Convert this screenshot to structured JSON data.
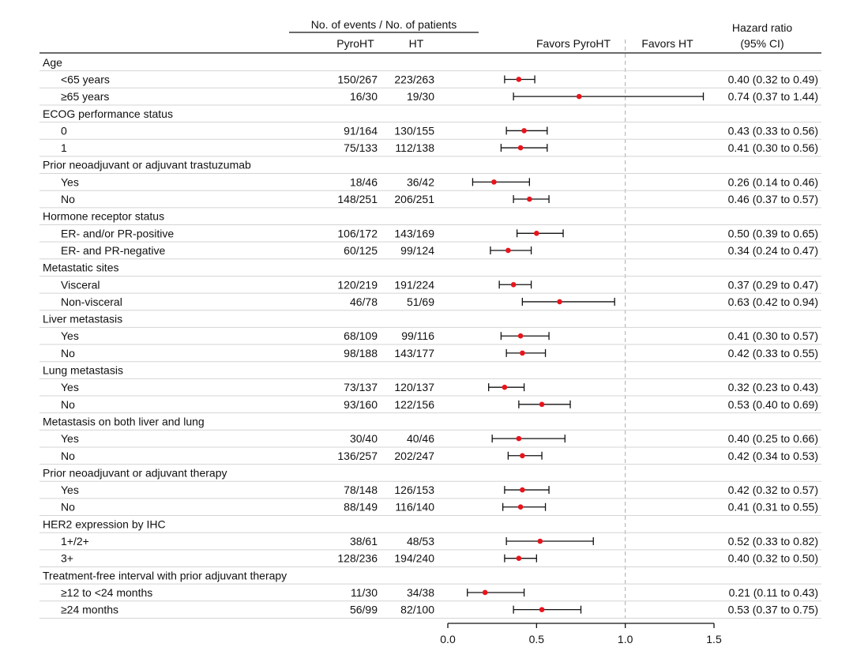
{
  "header": {
    "events_group": "No. of events / No. of patients",
    "col_pyroht": "PyroHT",
    "col_ht": "HT",
    "favors_left": "Favors PyroHT",
    "favors_right": "Favors HT",
    "hr_line1": "Hazard ratio",
    "hr_line2": "(95% CI)"
  },
  "chart_data": {
    "type": "forest",
    "xlim": [
      0,
      1.5
    ],
    "reference_line": 1.0,
    "ticks": [
      0.0,
      0.5,
      1.0,
      1.5
    ],
    "tick_labels": [
      "0.0",
      "0.5",
      "1.0",
      "1.5"
    ],
    "point_color": "#e8141c",
    "rows": [
      {
        "kind": "group",
        "label": "Age"
      },
      {
        "kind": "sub",
        "label": "<65 years",
        "pyroht": "150/267",
        "ht": "223/263",
        "hr": 0.4,
        "lo": 0.32,
        "hi": 0.49,
        "text": "0.40 (0.32 to 0.49)"
      },
      {
        "kind": "sub",
        "label": "≥65 years",
        "pyroht": "16/30",
        "ht": "19/30",
        "hr": 0.74,
        "lo": 0.37,
        "hi": 1.44,
        "text": "0.74 (0.37 to 1.44)"
      },
      {
        "kind": "group",
        "label": "ECOG performance status"
      },
      {
        "kind": "sub",
        "label": "0",
        "pyroht": "91/164",
        "ht": "130/155",
        "hr": 0.43,
        "lo": 0.33,
        "hi": 0.56,
        "text": "0.43 (0.33 to 0.56)"
      },
      {
        "kind": "sub",
        "label": "1",
        "pyroht": "75/133",
        "ht": "112/138",
        "hr": 0.41,
        "lo": 0.3,
        "hi": 0.56,
        "text": "0.41 (0.30 to 0.56)"
      },
      {
        "kind": "group",
        "label": "Prior neoadjuvant or adjuvant trastuzumab"
      },
      {
        "kind": "sub",
        "label": "Yes",
        "pyroht": "18/46",
        "ht": "36/42",
        "hr": 0.26,
        "lo": 0.14,
        "hi": 0.46,
        "text": "0.26 (0.14 to 0.46)"
      },
      {
        "kind": "sub",
        "label": "No",
        "pyroht": "148/251",
        "ht": "206/251",
        "hr": 0.46,
        "lo": 0.37,
        "hi": 0.57,
        "text": "0.46 (0.37 to 0.57)"
      },
      {
        "kind": "group",
        "label": "Hormone receptor status"
      },
      {
        "kind": "sub",
        "label": "ER- and/or PR-positive",
        "pyroht": "106/172",
        "ht": "143/169",
        "hr": 0.5,
        "lo": 0.39,
        "hi": 0.65,
        "text": "0.50 (0.39 to 0.65)"
      },
      {
        "kind": "sub",
        "label": "ER- and PR-negative",
        "pyroht": "60/125",
        "ht": "99/124",
        "hr": 0.34,
        "lo": 0.24,
        "hi": 0.47,
        "text": "0.34 (0.24 to 0.47)"
      },
      {
        "kind": "group",
        "label": "Metastatic sites"
      },
      {
        "kind": "sub",
        "label": "Visceral",
        "pyroht": "120/219",
        "ht": "191/224",
        "hr": 0.37,
        "lo": 0.29,
        "hi": 0.47,
        "text": "0.37 (0.29 to 0.47)"
      },
      {
        "kind": "sub",
        "label": "Non-visceral",
        "pyroht": "46/78",
        "ht": "51/69",
        "hr": 0.63,
        "lo": 0.42,
        "hi": 0.94,
        "text": "0.63 (0.42 to 0.94)"
      },
      {
        "kind": "group",
        "label": "Liver metastasis"
      },
      {
        "kind": "sub",
        "label": "Yes",
        "pyroht": "68/109",
        "ht": "99/116",
        "hr": 0.41,
        "lo": 0.3,
        "hi": 0.57,
        "text": "0.41 (0.30 to 0.57)"
      },
      {
        "kind": "sub",
        "label": "No",
        "pyroht": "98/188",
        "ht": "143/177",
        "hr": 0.42,
        "lo": 0.33,
        "hi": 0.55,
        "text": "0.42 (0.33 to 0.55)"
      },
      {
        "kind": "group",
        "label": "Lung metastasis"
      },
      {
        "kind": "sub",
        "label": "Yes",
        "pyroht": "73/137",
        "ht": "120/137",
        "hr": 0.32,
        "lo": 0.23,
        "hi": 0.43,
        "text": "0.32 (0.23 to 0.43)"
      },
      {
        "kind": "sub",
        "label": "No",
        "pyroht": "93/160",
        "ht": "122/156",
        "hr": 0.53,
        "lo": 0.4,
        "hi": 0.69,
        "text": "0.53 (0.40 to 0.69)"
      },
      {
        "kind": "group",
        "label": "Metastasis on both liver and lung"
      },
      {
        "kind": "sub",
        "label": "Yes",
        "pyroht": "30/40",
        "ht": "40/46",
        "hr": 0.4,
        "lo": 0.25,
        "hi": 0.66,
        "text": "0.40 (0.25 to 0.66)"
      },
      {
        "kind": "sub",
        "label": "No",
        "pyroht": "136/257",
        "ht": "202/247",
        "hr": 0.42,
        "lo": 0.34,
        "hi": 0.53,
        "text": "0.42 (0.34 to 0.53)"
      },
      {
        "kind": "group",
        "label": "Prior neoadjuvant or adjuvant therapy"
      },
      {
        "kind": "sub",
        "label": "Yes",
        "pyroht": "78/148",
        "ht": "126/153",
        "hr": 0.42,
        "lo": 0.32,
        "hi": 0.57,
        "text": "0.42 (0.32 to 0.57)"
      },
      {
        "kind": "sub",
        "label": "No",
        "pyroht": "88/149",
        "ht": "116/140",
        "hr": 0.41,
        "lo": 0.31,
        "hi": 0.55,
        "text": "0.41 (0.31 to 0.55)"
      },
      {
        "kind": "group",
        "label": "HER2 expression by IHC"
      },
      {
        "kind": "sub",
        "label": "1+/2+",
        "pyroht": "38/61",
        "ht": "48/53",
        "hr": 0.52,
        "lo": 0.33,
        "hi": 0.82,
        "text": "0.52 (0.33 to 0.82)"
      },
      {
        "kind": "sub",
        "label": "3+",
        "pyroht": "128/236",
        "ht": "194/240",
        "hr": 0.4,
        "lo": 0.32,
        "hi": 0.5,
        "text": "0.40 (0.32 to 0.50)"
      },
      {
        "kind": "group",
        "label": "Treatment-free interval with prior adjuvant therapy"
      },
      {
        "kind": "sub",
        "label": "≥12  to  <24 months",
        "pyroht": "11/30",
        "ht": "34/38",
        "hr": 0.21,
        "lo": 0.11,
        "hi": 0.43,
        "text": "0.21 (0.11 to 0.43)"
      },
      {
        "kind": "sub",
        "label": "≥24 months",
        "pyroht": "56/99",
        "ht": "82/100",
        "hr": 0.53,
        "lo": 0.37,
        "hi": 0.75,
        "text": "0.53 (0.37 to 0.75)"
      }
    ]
  }
}
